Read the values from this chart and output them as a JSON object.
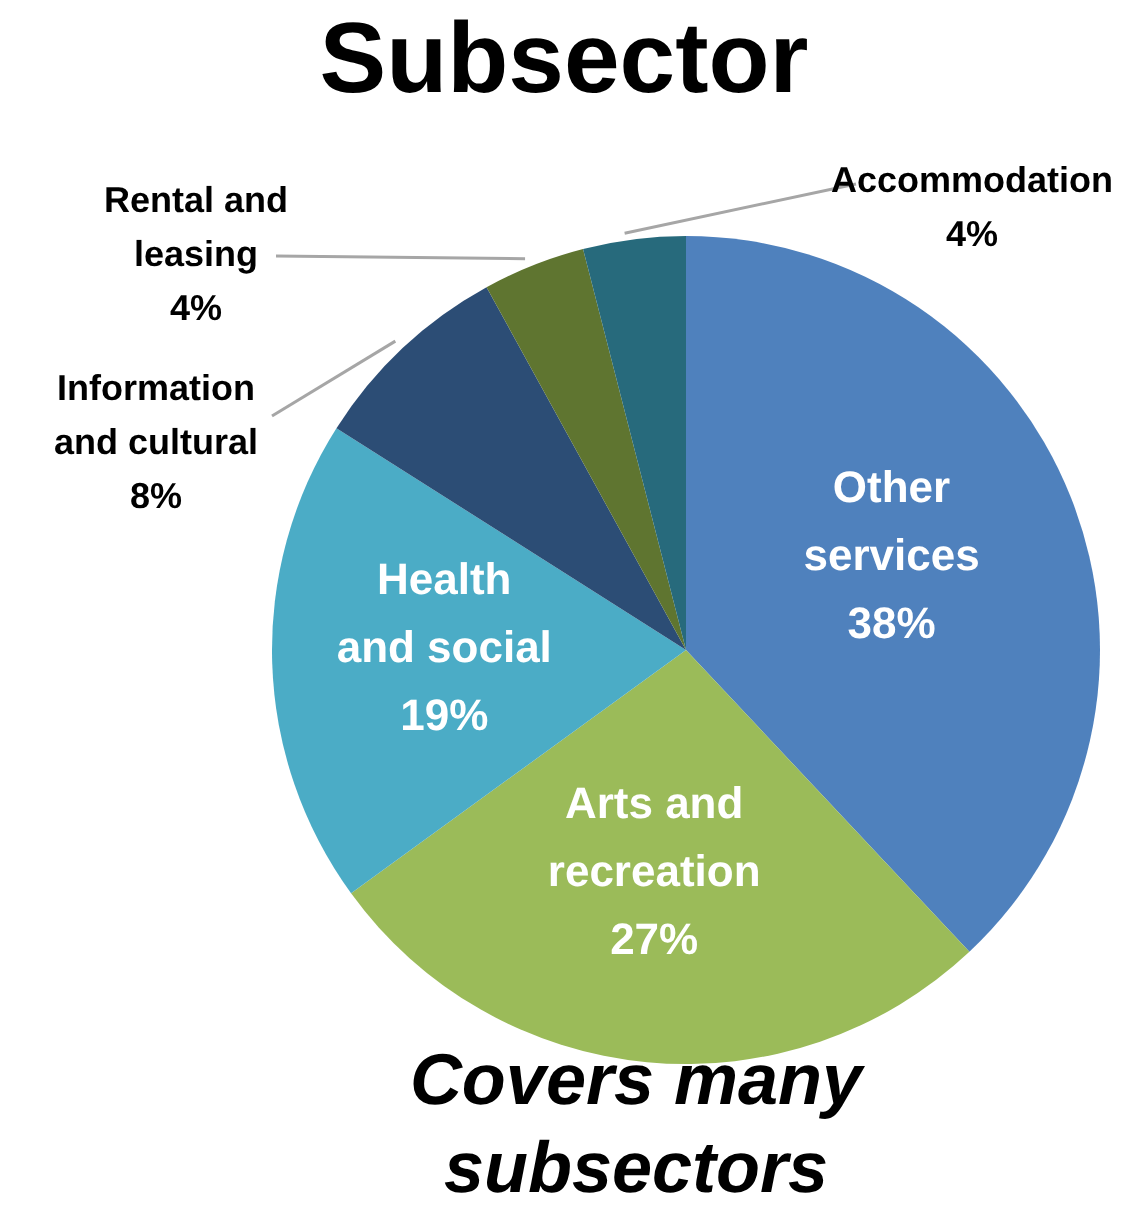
{
  "chart_data": {
    "type": "pie",
    "title": "Subsector",
    "subtitle": "Covers many subsectors",
    "categories": [
      "Other\nservices",
      "Arts and\nrecreation",
      "Health\nand social",
      "Information\nand cultural",
      "Rental and\nleasing",
      "Accommodation"
    ],
    "values": [
      38,
      27,
      19,
      8,
      4,
      4
    ],
    "value_labels": [
      "38%",
      "27%",
      "19%",
      "8%",
      "4%",
      "4%"
    ],
    "colors": [
      "#4f81bd",
      "#9bbb59",
      "#4bacc6",
      "#2c4d75",
      "#5f7530",
      "#276a7c"
    ],
    "legend": false
  }
}
